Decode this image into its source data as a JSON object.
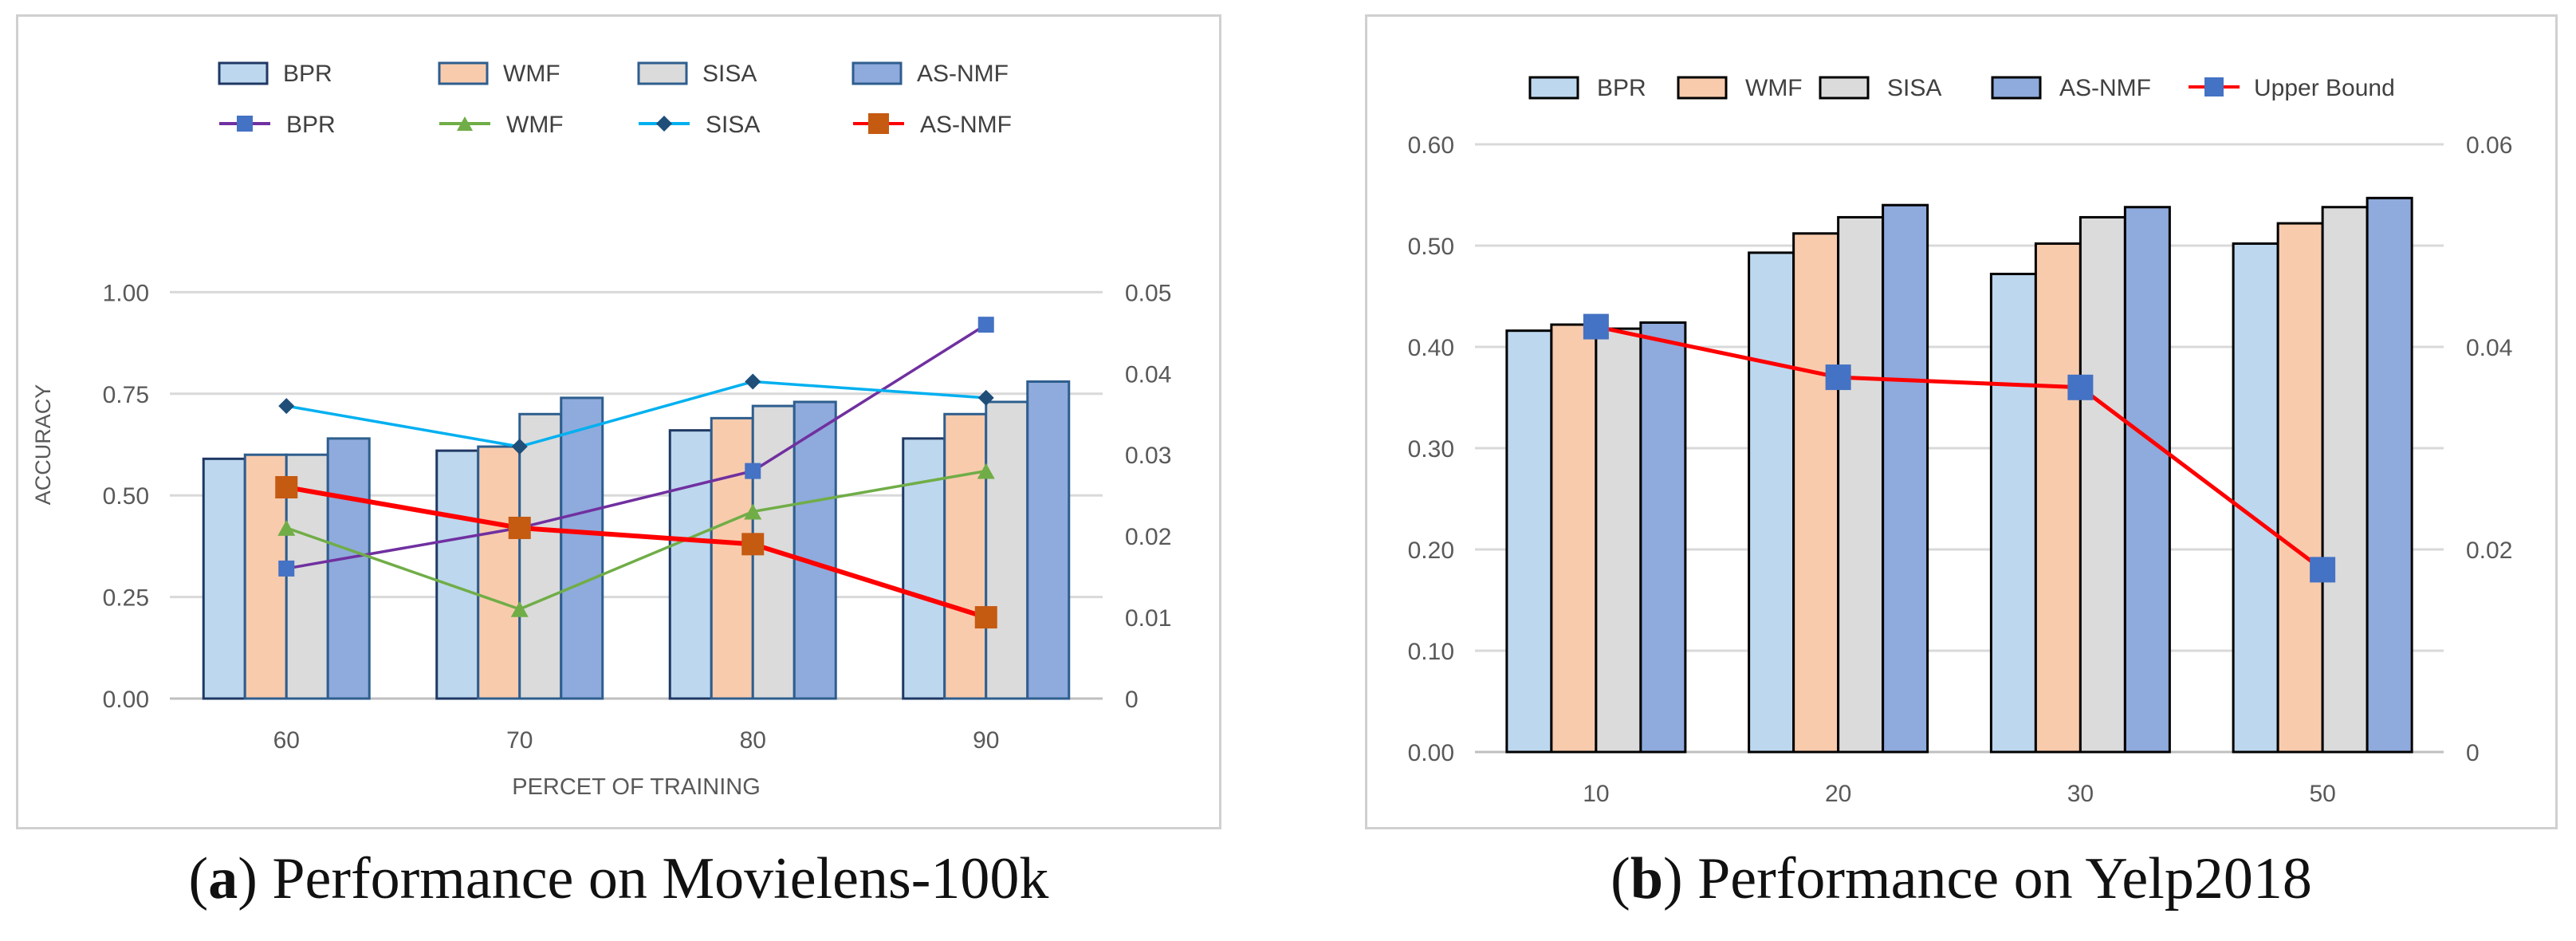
{
  "captions": {
    "a": {
      "letter": "a",
      "text": "Performance on Movielens-100k"
    },
    "b": {
      "letter": "b",
      "text": "Performance on Yelp2018"
    }
  },
  "chart_data": [
    {
      "id": "a",
      "type": "bar+line",
      "title": "",
      "xlabel": "PERCET OF TRAINING",
      "ylabel": "ACCURACY",
      "categories": [
        "60",
        "70",
        "80",
        "90"
      ],
      "ylim": [
        0,
        1.25
      ],
      "y_ticks": [
        0,
        0.25,
        0.5,
        0.75,
        1.0
      ],
      "y_tick_labels": [
        "0.00",
        "0.25",
        "0.50",
        "0.75",
        "1.00"
      ],
      "y2lim": [
        0,
        0.0625
      ],
      "y2_ticks": [
        0,
        0.01,
        0.02,
        0.03,
        0.04,
        0.05
      ],
      "y2_tick_labels": [
        "0",
        "0.01",
        "0.02",
        "0.03",
        "0.04",
        "0.05"
      ],
      "grid": true,
      "legend_position": "top",
      "bar_series": [
        {
          "name": "BPR",
          "color": "#bdd7ee",
          "edge": "#1f3864",
          "values": [
            0.59,
            0.61,
            0.66,
            0.64
          ]
        },
        {
          "name": "WMF",
          "color": "#f8cbad",
          "edge": "#2e5e8e",
          "values": [
            0.6,
            0.62,
            0.69,
            0.7
          ]
        },
        {
          "name": "SISA",
          "color": "#dbdbdb",
          "edge": "#2e5e8e",
          "values": [
            0.6,
            0.7,
            0.72,
            0.73
          ]
        },
        {
          "name": "AS-NMF",
          "color": "#8faadc",
          "edge": "#2e5e8e",
          "values": [
            0.64,
            0.74,
            0.73,
            0.78
          ]
        }
      ],
      "line_series": [
        {
          "name": "BPR",
          "color": "#7030a0",
          "marker": "square",
          "marker_color": "#4472c4",
          "values": [
            0.016,
            0.021,
            0.028,
            0.046
          ]
        },
        {
          "name": "WMF",
          "color": "#70ad47",
          "marker": "triangle",
          "marker_color": "#70ad47",
          "values": [
            0.021,
            0.011,
            0.023,
            0.028
          ]
        },
        {
          "name": "SISA",
          "color": "#00b0f0",
          "marker": "diamond",
          "marker_color": "#1f4e79",
          "values": [
            0.036,
            0.031,
            0.039,
            0.037
          ]
        },
        {
          "name": "AS-NMF",
          "color": "#ff0000",
          "marker": "square",
          "marker_color": "#c55a11",
          "values": [
            0.026,
            0.021,
            0.019,
            0.01
          ]
        }
      ]
    },
    {
      "id": "b",
      "type": "bar+line",
      "title": "",
      "xlabel": "",
      "ylabel": "",
      "categories": [
        "10",
        "20",
        "30",
        "50"
      ],
      "ylim": [
        0,
        0.6
      ],
      "y_ticks": [
        0,
        0.1,
        0.2,
        0.3,
        0.4,
        0.5,
        0.6
      ],
      "y_tick_labels": [
        "0.00",
        "0.10",
        "0.20",
        "0.30",
        "0.40",
        "0.50",
        "0.60"
      ],
      "y2lim": [
        0,
        0.06
      ],
      "y2_ticks": [
        0,
        0.02,
        0.04,
        0.06
      ],
      "y2_tick_labels": [
        "0",
        "0.02",
        "0.04",
        "0.06"
      ],
      "grid": true,
      "legend_position": "top",
      "bar_series": [
        {
          "name": "BPR",
          "color": "#bdd7ee",
          "edge": "#000000",
          "values": [
            0.416,
            0.493,
            0.472,
            0.502
          ]
        },
        {
          "name": "WMF",
          "color": "#f8cbad",
          "edge": "#000000",
          "values": [
            0.422,
            0.512,
            0.502,
            0.522
          ]
        },
        {
          "name": "SISA",
          "color": "#dbdbdb",
          "edge": "#000000",
          "values": [
            0.418,
            0.528,
            0.528,
            0.538
          ]
        },
        {
          "name": "AS-NMF",
          "color": "#8faadc",
          "edge": "#000000",
          "values": [
            0.424,
            0.54,
            0.538,
            0.547
          ]
        }
      ],
      "line_series": [
        {
          "name": "Upper Bound",
          "color": "#ff0000",
          "marker": "square",
          "marker_color": "#4472c4",
          "values": [
            0.042,
            0.037,
            0.036,
            0.018
          ]
        }
      ]
    }
  ]
}
